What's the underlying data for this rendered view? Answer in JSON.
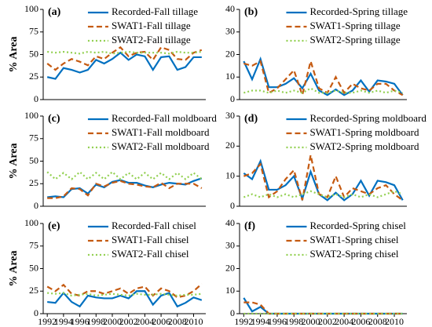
{
  "chart_data": [
    {
      "type": "line",
      "label": "(a)",
      "ylabel": "% Area",
      "x": [
        1992,
        1993,
        1994,
        1995,
        1996,
        1997,
        1998,
        1999,
        2000,
        2001,
        2002,
        2003,
        2004,
        2005,
        2006,
        2007,
        2008,
        2009,
        2010,
        2011
      ],
      "xlim": [
        1991.5,
        2011.5
      ],
      "ylim": [
        0,
        100
      ],
      "yticks": [
        0,
        25,
        50,
        75,
        100
      ],
      "series": [
        {
          "name": "Recorded-Fall tillage",
          "color": "#0070c0",
          "linestyle": "solid",
          "values": [
            25,
            23,
            35,
            33,
            30,
            33,
            44,
            40,
            45,
            52,
            44,
            50,
            48,
            33,
            47,
            48,
            33,
            36,
            47,
            47
          ]
        },
        {
          "name": "SWAT1-Fall tillage",
          "color": "#c55a11",
          "linestyle": "dashed",
          "values": [
            40,
            33,
            40,
            45,
            42,
            38,
            48,
            45,
            52,
            58,
            48,
            52,
            53,
            44,
            58,
            55,
            45,
            44,
            52,
            55
          ]
        },
        {
          "name": "SWAT2-Fall tillage",
          "color": "#92d050",
          "linestyle": "dotted",
          "values": [
            53,
            52,
            53,
            52,
            51,
            53,
            52,
            53,
            51,
            52,
            53,
            52,
            52,
            52,
            52,
            51,
            53,
            52,
            52,
            53
          ]
        }
      ]
    },
    {
      "type": "line",
      "label": "(b)",
      "x": [
        1992,
        1993,
        1994,
        1995,
        1996,
        1997,
        1998,
        1999,
        2000,
        2001,
        2002,
        2003,
        2004,
        2005,
        2006,
        2007,
        2008,
        2009,
        2010,
        2011
      ],
      "xlim": [
        1991.5,
        2011.5
      ],
      "ylim": [
        0,
        40
      ],
      "yticks": [
        0,
        10,
        20,
        30,
        40
      ],
      "series": [
        {
          "name": "Recorded-Spring tillage",
          "color": "#0070c0",
          "linestyle": "solid",
          "values": [
            17,
            9,
            18,
            5.5,
            5.5,
            7,
            9.5,
            5,
            11.5,
            4,
            2,
            4.5,
            2,
            4,
            8.5,
            3.5,
            8.5,
            8,
            7,
            2
          ]
        },
        {
          "name": "SWAT1-Spring tillage",
          "color": "#c55a11",
          "linestyle": "dashed",
          "values": [
            16,
            15,
            17,
            3,
            5,
            9,
            13,
            2,
            17,
            5,
            3,
            10,
            3,
            7,
            5,
            4,
            7,
            7,
            4,
            2
          ]
        },
        {
          "name": "SWAT2-Spring tillage",
          "color": "#92d050",
          "linestyle": "dotted",
          "values": [
            3,
            4,
            4,
            3,
            4,
            3,
            4,
            3,
            5,
            3,
            3,
            4,
            3,
            3,
            4,
            3,
            4,
            3,
            4,
            3
          ]
        }
      ]
    },
    {
      "type": "line",
      "label": "(c)",
      "ylabel": "% Area",
      "x": [
        1992,
        1993,
        1994,
        1995,
        1996,
        1997,
        1998,
        1999,
        2000,
        2001,
        2002,
        2003,
        2004,
        2005,
        2006,
        2007,
        2008,
        2009,
        2010,
        2011
      ],
      "xlim": [
        1991.5,
        2011.5
      ],
      "ylim": [
        0,
        100
      ],
      "yticks": [
        0,
        25,
        50,
        75,
        100
      ],
      "series": [
        {
          "name": "Recorded-Fall moldboard",
          "color": "#0070c0",
          "linestyle": "solid",
          "values": [
            10,
            11,
            10,
            19,
            20,
            14,
            24,
            21,
            27,
            29,
            26,
            26,
            23,
            21,
            24,
            26,
            25,
            24,
            28,
            31
          ]
        },
        {
          "name": "SWAT1-Fall moldboard",
          "color": "#c55a11",
          "linestyle": "dashed",
          "values": [
            9,
            9,
            11,
            20,
            19,
            12,
            25,
            22,
            26,
            28,
            25,
            24,
            22,
            21,
            26,
            20,
            25,
            25,
            25,
            20
          ]
        },
        {
          "name": "SWAT2-Fall moldboard",
          "color": "#92d050",
          "linestyle": "dotted",
          "values": [
            38,
            30,
            37,
            30,
            38,
            30,
            37,
            30,
            38,
            30,
            37,
            30,
            37,
            30,
            37,
            30,
            37,
            30,
            37,
            30
          ]
        }
      ]
    },
    {
      "type": "line",
      "label": "(d)",
      "x": [
        1992,
        1993,
        1994,
        1995,
        1996,
        1997,
        1998,
        1999,
        2000,
        2001,
        2002,
        2003,
        2004,
        2005,
        2006,
        2007,
        2008,
        2009,
        2010,
        2011
      ],
      "xlim": [
        1991.5,
        2011.5
      ],
      "ylim": [
        0,
        30
      ],
      "yticks": [
        0,
        10,
        20,
        30
      ],
      "series": [
        {
          "name": "Recorded-Spring moldboard",
          "color": "#0070c0",
          "linestyle": "solid",
          "values": [
            11,
            9,
            15,
            5.5,
            5.5,
            7,
            10,
            2.5,
            11.5,
            4,
            2,
            4.5,
            2,
            4,
            8.5,
            3.5,
            8.5,
            8,
            7,
            2
          ]
        },
        {
          "name": "SWAT1-Spring moldboard",
          "color": "#c55a11",
          "linestyle": "dashed",
          "values": [
            10,
            11,
            14,
            3,
            5,
            9,
            12,
            2,
            17,
            4,
            3,
            10,
            3,
            6,
            5,
            4,
            6,
            7,
            4,
            2
          ]
        },
        {
          "name": "SWAT2-Spring moldboard",
          "color": "#92d050",
          "linestyle": "dotted",
          "values": [
            3,
            4,
            3,
            4,
            3,
            4,
            3,
            4,
            5,
            4,
            3,
            4,
            3,
            4,
            3,
            4,
            3,
            4,
            5,
            4
          ]
        }
      ]
    },
    {
      "type": "line",
      "label": "(e)",
      "ylabel": "% Area",
      "x": [
        1992,
        1993,
        1994,
        1995,
        1996,
        1997,
        1998,
        1999,
        2000,
        2001,
        2002,
        2003,
        2004,
        2005,
        2006,
        2007,
        2008,
        2009,
        2010,
        2011
      ],
      "xlim": [
        1991.5,
        2011.5
      ],
      "xticks": [
        1992,
        1994,
        1996,
        1998,
        2000,
        2002,
        2004,
        2006,
        2008,
        2010
      ],
      "ylim": [
        0,
        100
      ],
      "yticks": [
        0,
        25,
        50,
        75,
        100
      ],
      "series": [
        {
          "name": "Recorded-Fall chisel",
          "color": "#0070c0",
          "linestyle": "solid",
          "values": [
            13,
            12,
            23,
            13,
            8,
            20,
            18,
            17,
            17,
            20,
            17,
            25,
            25,
            10,
            20,
            23,
            8,
            12,
            18,
            15
          ]
        },
        {
          "name": "SWAT1-Fall chisel",
          "color": "#c55a11",
          "linestyle": "dashed",
          "values": [
            30,
            25,
            32,
            22,
            20,
            25,
            25,
            22,
            25,
            28,
            22,
            28,
            30,
            20,
            28,
            25,
            18,
            20,
            25,
            33
          ]
        },
        {
          "name": "SWAT2-Fall chisel",
          "color": "#92d050",
          "linestyle": "dotted",
          "values": [
            23,
            22,
            23,
            20,
            21,
            22,
            20,
            21,
            22,
            21,
            20,
            22,
            21,
            21,
            22,
            21,
            20,
            21,
            21,
            22
          ]
        }
      ]
    },
    {
      "type": "line",
      "label": "(f)",
      "x": [
        1992,
        1993,
        1994,
        1995,
        1996,
        1997,
        1998,
        1999,
        2000,
        2001,
        2002,
        2003,
        2004,
        2005,
        2006,
        2007,
        2008,
        2009,
        2010,
        2011
      ],
      "xlim": [
        1991.5,
        2011.5
      ],
      "xticks": [
        1992,
        1994,
        1996,
        1998,
        2000,
        2002,
        2004,
        2006,
        2008,
        2010
      ],
      "ylim": [
        0,
        40
      ],
      "yticks": [
        0,
        10,
        20,
        30,
        40
      ],
      "series": [
        {
          "name": "Recorded-Spring chisel",
          "color": "#0070c0",
          "linestyle": "solid",
          "values": [
            7,
            1,
            3,
            0,
            0,
            0,
            0,
            0,
            0,
            0,
            0,
            0,
            0,
            0,
            0,
            0,
            0,
            0,
            0,
            0
          ]
        },
        {
          "name": "SWAT1-Spring chisel",
          "color": "#c55a11",
          "linestyle": "dashed",
          "values": [
            5,
            5,
            4,
            0,
            0,
            0,
            0,
            0,
            0,
            0,
            0,
            0,
            0,
            0,
            0,
            0,
            0,
            0,
            0,
            0
          ]
        },
        {
          "name": "SWAT2-Spring chisel",
          "color": "#92d050",
          "linestyle": "dotted",
          "values": [
            0,
            0,
            0,
            0,
            0,
            0,
            0,
            0,
            0,
            0,
            0,
            0,
            0,
            0,
            0,
            0,
            0,
            0,
            0,
            0
          ]
        }
      ]
    }
  ]
}
